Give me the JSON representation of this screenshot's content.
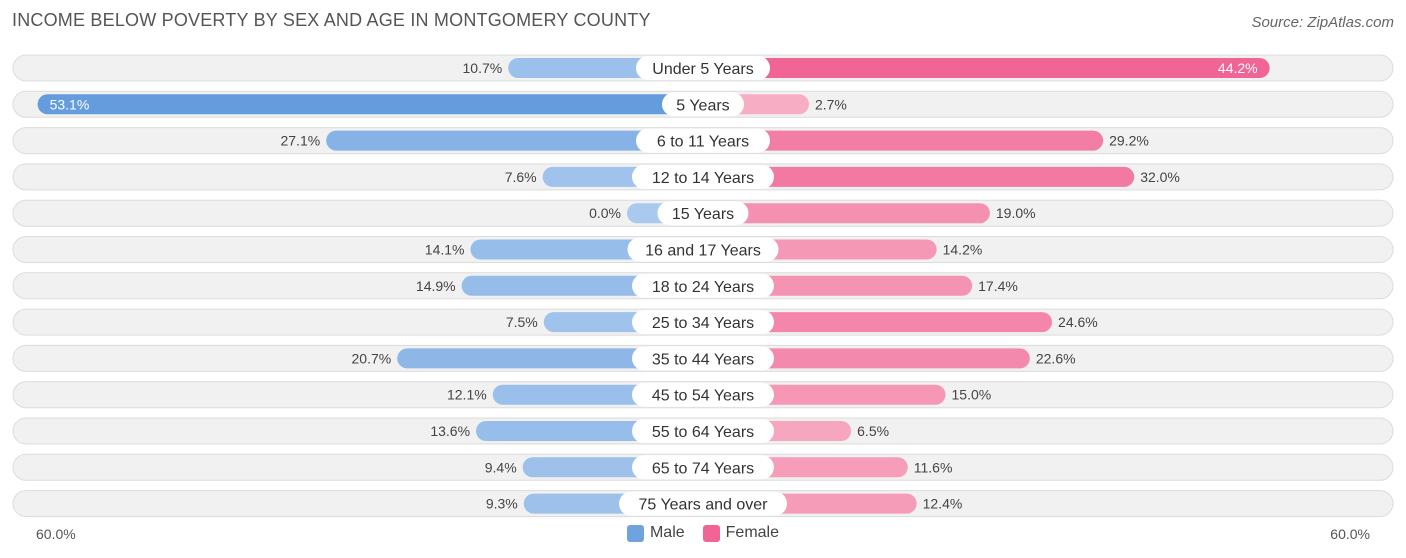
{
  "title": "INCOME BELOW POVERTY BY SEX AND AGE IN MONTGOMERY COUNTY",
  "source": "Source: ZipAtlas.com",
  "colors": {
    "male": "#6ea3e0",
    "male_strong": "#5b96dc",
    "female": "#f7819f",
    "female_strong": "#f06595"
  },
  "legend": {
    "male_label": "Male",
    "female_label": "Female"
  },
  "axis": {
    "left_label": "60.0%",
    "right_label": "60.0%"
  },
  "chart_data": {
    "type": "bar",
    "orientation": "horizontal-diverging",
    "title": "INCOME BELOW POVERTY BY SEX AND AGE IN MONTGOMERY COUNTY",
    "categories": [
      "Under 5 Years",
      "5 Years",
      "6 to 11 Years",
      "12 to 14 Years",
      "15 Years",
      "16 and 17 Years",
      "18 to 24 Years",
      "25 to 34 Years",
      "35 to 44 Years",
      "45 to 54 Years",
      "55 to 64 Years",
      "65 to 74 Years",
      "75 Years and over"
    ],
    "series": [
      {
        "name": "Male",
        "values": [
          10.7,
          53.1,
          27.1,
          7.6,
          0.0,
          14.1,
          14.9,
          7.5,
          20.7,
          12.1,
          13.6,
          9.4,
          9.3
        ]
      },
      {
        "name": "Female",
        "values": [
          44.2,
          2.7,
          29.2,
          32.0,
          19.0,
          14.2,
          17.4,
          24.6,
          22.6,
          15.0,
          6.5,
          11.6,
          12.4
        ]
      }
    ],
    "value_labels": {
      "male": [
        "10.7%",
        "53.1%",
        "27.1%",
        "7.6%",
        "0.0%",
        "14.1%",
        "14.9%",
        "7.5%",
        "20.7%",
        "12.1%",
        "13.6%",
        "9.4%",
        "9.3%"
      ],
      "female": [
        "44.2%",
        "2.7%",
        "29.2%",
        "32.0%",
        "19.0%",
        "14.2%",
        "17.4%",
        "24.6%",
        "22.6%",
        "15.0%",
        "6.5%",
        "11.6%",
        "12.4%"
      ]
    },
    "xlim": [
      -60,
      60
    ],
    "legend_position": "bottom-center"
  }
}
